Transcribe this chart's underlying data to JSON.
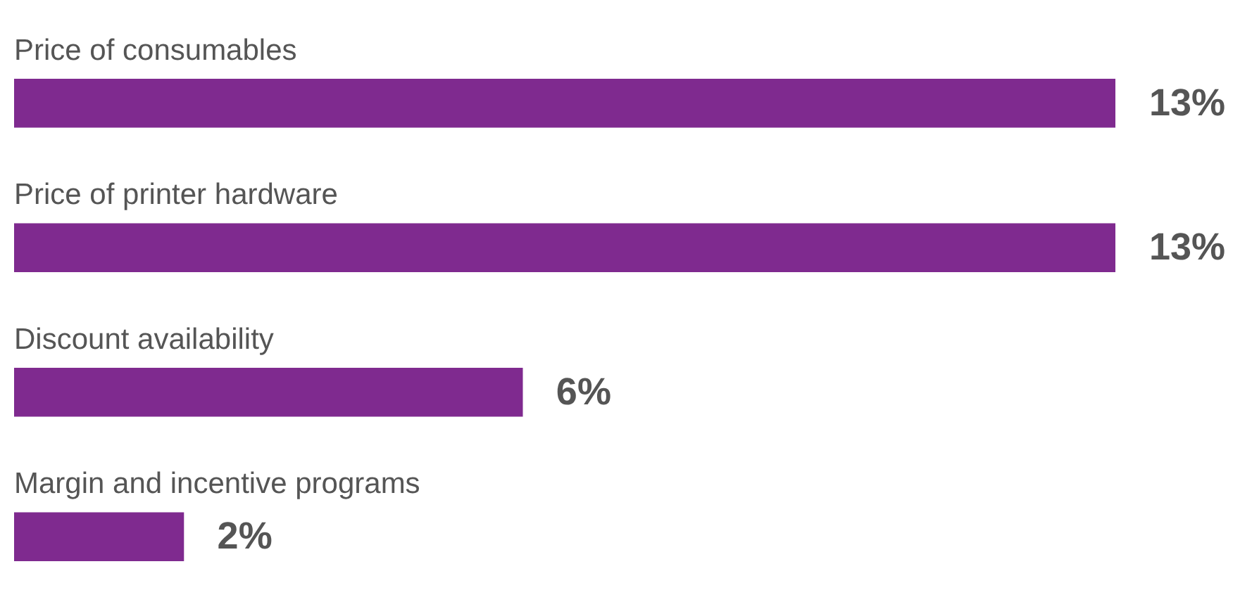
{
  "chart_data": {
    "type": "bar",
    "orientation": "horizontal",
    "categories": [
      "Price of consumables",
      "Price of printer hardware",
      "Discount availability",
      "Margin and incentive programs"
    ],
    "values": [
      13,
      13,
      6,
      2
    ],
    "value_labels": [
      "13%",
      "13%",
      "6%",
      "2%"
    ],
    "color": "#7f2a8f",
    "legend": false
  }
}
